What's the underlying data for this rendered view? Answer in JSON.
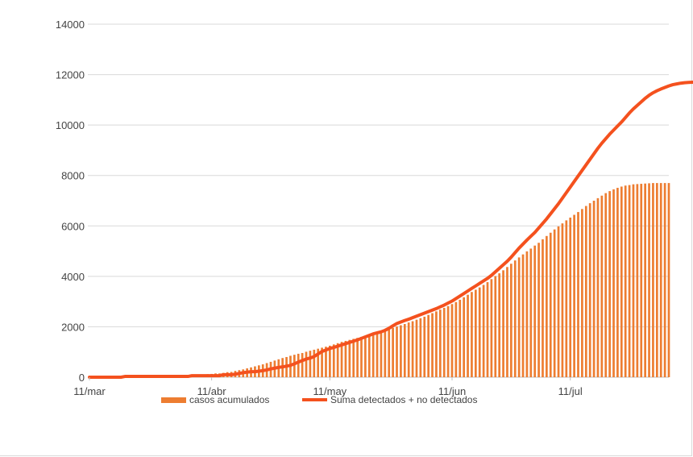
{
  "chart_data": {
    "type": "bar",
    "y_ticks": [
      0,
      2000,
      4000,
      6000,
      8000,
      10000,
      12000,
      14000
    ],
    "ylim": [
      0,
      14000
    ],
    "x_ticks": [
      "11/mar",
      "11/abr",
      "11/may",
      "11/jun",
      "11/jul"
    ],
    "grid": "horizontal",
    "legend_position": "bottom",
    "series": [
      {
        "name": "casos acumulados",
        "type": "bar",
        "color": "#ED7D31",
        "values": [
          0,
          0,
          0,
          0,
          0,
          0,
          0,
          0,
          0,
          0,
          0,
          0,
          0,
          0,
          0,
          0,
          0,
          0,
          0,
          0,
          0,
          30,
          60,
          60,
          60,
          60,
          60,
          60,
          60,
          100,
          120,
          130,
          150,
          150,
          170,
          200,
          210,
          250,
          280,
          310,
          350,
          390,
          430,
          470,
          510,
          560,
          610,
          660,
          710,
          760,
          800,
          850,
          890,
          930,
          960,
          1010,
          1050,
          1090,
          1130,
          1170,
          1210,
          1250,
          1300,
          1350,
          1400,
          1440,
          1480,
          1520,
          1560,
          1600,
          1640,
          1680,
          1720,
          1760,
          1810,
          1860,
          1910,
          1960,
          2010,
          2060,
          2110,
          2170,
          2220,
          2280,
          2340,
          2400,
          2470,
          2540,
          2610,
          2680,
          2750,
          2820,
          2900,
          2980,
          3070,
          3170,
          3270,
          3380,
          3470,
          3560,
          3660,
          3770,
          3890,
          4010,
          4120,
          4240,
          4370,
          4500,
          4630,
          4750,
          4870,
          4990,
          5100,
          5220,
          5330,
          5470,
          5600,
          5730,
          5860,
          5980,
          6100,
          6220,
          6330,
          6440,
          6550,
          6670,
          6790,
          6900,
          7000,
          7100,
          7200,
          7300,
          7380,
          7450,
          7510,
          7560,
          7600,
          7620,
          7650,
          7660,
          7670,
          7680,
          7690,
          7700,
          7700,
          7700,
          7700,
          7700
        ]
      },
      {
        "name": "Suma detectados + no detectados",
        "type": "line",
        "color": "#F4511E",
        "values": [
          0,
          0,
          0,
          0,
          0,
          0,
          0,
          0,
          0,
          30,
          30,
          30,
          30,
          30,
          30,
          30,
          30,
          30,
          30,
          30,
          30,
          30,
          30,
          30,
          30,
          30,
          60,
          60,
          60,
          60,
          60,
          60,
          60,
          60,
          100,
          100,
          100,
          120,
          150,
          180,
          200,
          220,
          220,
          240,
          260,
          290,
          330,
          360,
          390,
          410,
          440,
          470,
          530,
          600,
          660,
          720,
          760,
          820,
          920,
          1020,
          1080,
          1140,
          1180,
          1230,
          1280,
          1330,
          1380,
          1430,
          1480,
          1540,
          1600,
          1660,
          1720,
          1760,
          1800,
          1860,
          1940,
          2040,
          2130,
          2190,
          2250,
          2300,
          2360,
          2420,
          2480,
          2540,
          2600,
          2660,
          2720,
          2790,
          2860,
          2940,
          3020,
          3120,
          3220,
          3320,
          3420,
          3520,
          3620,
          3720,
          3820,
          3920,
          4040,
          4180,
          4320,
          4460,
          4600,
          4760,
          4940,
          5120,
          5280,
          5440,
          5590,
          5740,
          5920,
          6100,
          6280,
          6480,
          6680,
          6880,
          7100,
          7320,
          7540,
          7760,
          7980,
          8200,
          8420,
          8640,
          8860,
          9080,
          9280,
          9460,
          9640,
          9800,
          9960,
          10120,
          10300,
          10480,
          10640,
          10780,
          10920,
          11060,
          11180,
          11280,
          11360,
          11430,
          11490,
          11550,
          11600,
          11630,
          11660,
          11680,
          11690,
          11700,
          11700,
          11700
        ]
      }
    ]
  }
}
